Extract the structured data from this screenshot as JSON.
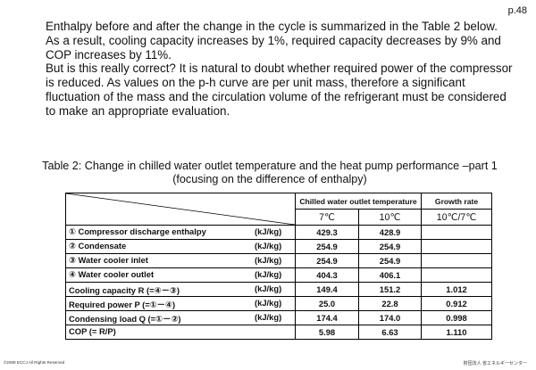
{
  "page_number": "p.48",
  "paragraphs": [
    "Enthalpy before and after the change in the cycle is summarized in the Table 2 below.",
    "As a result, cooling capacity increases by 1%,  required capacity decreases by 9% and COP increases by 11%.",
    "But is this really correct? It is natural to doubt whether required power of the compressor is reduced. As values on the p-h curve are per unit mass, therefore a significant fluctuation of the mass and the circulation volume of the refrigerant must be considered to make an appropriate evaluation."
  ],
  "caption_line1": "Table 2: Change in chilled water outlet temperature and the heat pump performance –part 1",
  "caption_line2": "(focusing on the difference of enthalpy)",
  "table": {
    "group_header": "Chilled water outlet temperature",
    "growth_header": "Growth rate",
    "col_7": "7℃",
    "col_10": "10℃",
    "col_ratio": "10℃/7℃",
    "rows": [
      {
        "label": "① Compressor discharge enthalpy",
        "unit": "(kJ/kg)",
        "v7": "429.3",
        "v10": "428.9",
        "growth": ""
      },
      {
        "label": "② Condensate",
        "unit": "(kJ/kg)",
        "v7": "254.9",
        "v10": "254.9",
        "growth": ""
      },
      {
        "label": "③ Water cooler inlet",
        "unit": "(kJ/kg)",
        "v7": "254.9",
        "v10": "254.9",
        "growth": ""
      },
      {
        "label": "④ Water cooler outlet",
        "unit": "(kJ/kg)",
        "v7": "404.3",
        "v10": "406.1",
        "growth": ""
      },
      {
        "label": "Cooling capacity  R (=④－③)",
        "unit": "(kJ/kg)",
        "v7": "149.4",
        "v10": "151.2",
        "growth": "1.012"
      },
      {
        "label": "Required power  P (=①－④)",
        "unit": "(kJ/kg)",
        "v7": "25.0",
        "v10": "22.8",
        "growth": "0.912"
      },
      {
        "label": "Condensing load  Q (=①－②)",
        "unit": "(kJ/kg)",
        "v7": "174.4",
        "v10": "174.0",
        "growth": "0.998"
      },
      {
        "label": "COP (= R/P)",
        "unit": "",
        "v7": "5.98",
        "v10": "6.63",
        "growth": "1.110"
      }
    ]
  },
  "footer_left": "©2008  ECCJ All Rights Reserved",
  "footer_right": "財団法人 省エネルギーセンター"
}
